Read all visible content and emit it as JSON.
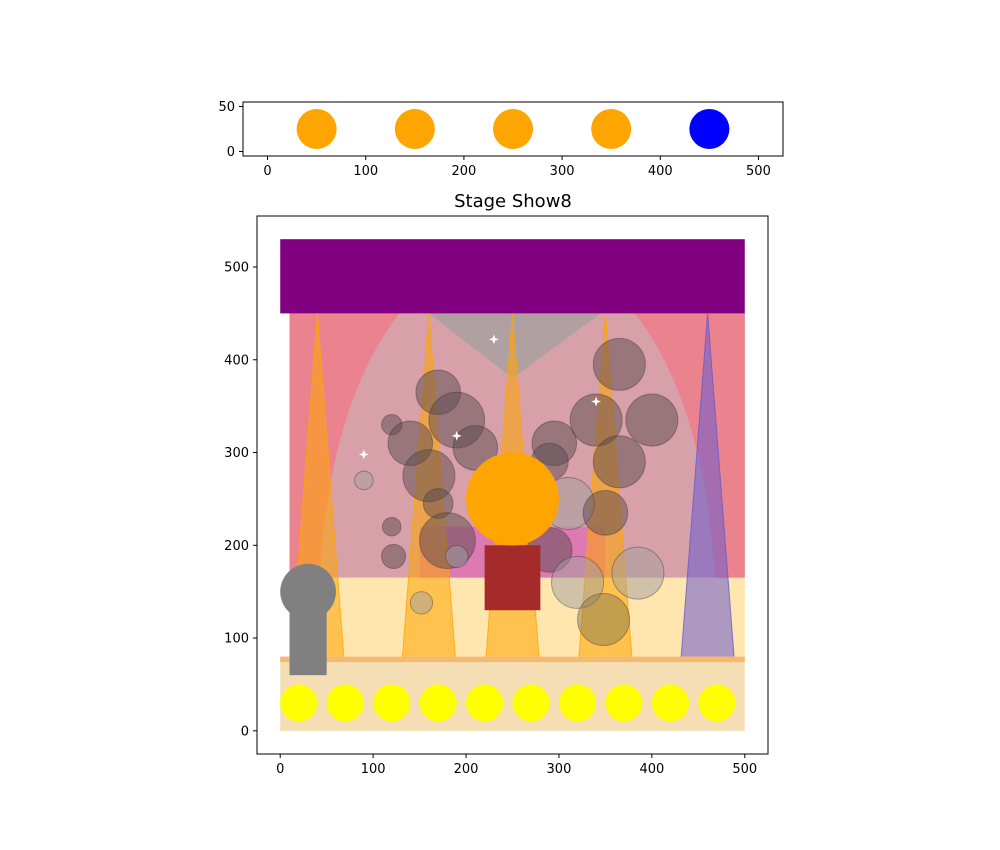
{
  "chart_data": [
    {
      "type": "scatter",
      "title": "",
      "xlim": [
        -25,
        525
      ],
      "ylim": [
        -5,
        55
      ],
      "xticks": [
        0,
        100,
        200,
        300,
        400,
        500
      ],
      "yticks": [
        0,
        50
      ],
      "points": [
        {
          "x": 50,
          "y": 25,
          "color": "#ffa500"
        },
        {
          "x": 150,
          "y": 25,
          "color": "#ffa500"
        },
        {
          "x": 250,
          "y": 25,
          "color": "#ffa500"
        },
        {
          "x": 350,
          "y": 25,
          "color": "#ffa500"
        },
        {
          "x": 450,
          "y": 25,
          "color": "#0000ff"
        }
      ]
    },
    {
      "type": "other",
      "title": "Stage Show8",
      "xlim": [
        -25,
        525
      ],
      "ylim": [
        -25,
        555
      ],
      "xticks": [
        0,
        100,
        200,
        300,
        400,
        500
      ],
      "yticks": [
        0,
        100,
        200,
        300,
        400,
        500
      ],
      "elements": {
        "backdrop": {
          "x": [
            10,
            500
          ],
          "y": [
            165,
            450
          ],
          "color": "#d8a0a8"
        },
        "banner": {
          "x": [
            0,
            500
          ],
          "y": [
            450,
            530
          ],
          "color": "#800080"
        },
        "stage_floor": {
          "x": [
            0,
            500
          ],
          "y": [
            0,
            80
          ],
          "color": "#f5deb3"
        },
        "spotlights": [
          {
            "x": 40,
            "top": 450,
            "bottom": 60,
            "half_width": 30,
            "color": "#ffa500"
          },
          {
            "x": 160,
            "top": 450,
            "bottom": 60,
            "half_width": 30,
            "color": "#ffa500"
          },
          {
            "x": 250,
            "top": 450,
            "bottom": 60,
            "half_width": 30,
            "color": "#ffa500"
          },
          {
            "x": 350,
            "top": 450,
            "bottom": 60,
            "half_width": 30,
            "color": "#ffa500"
          },
          {
            "x": 460,
            "top": 450,
            "bottom": 60,
            "half_width": 30,
            "color": "#6a5acd"
          }
        ],
        "footlights": {
          "x": [
            20,
            70,
            120,
            170,
            220,
            270,
            320,
            370,
            420,
            470
          ],
          "y": 30,
          "radius": 20,
          "color": "#ffff00"
        },
        "performer": {
          "head": {
            "x": 250,
            "y": 250,
            "radius": 50
          },
          "body": {
            "x": [
              220,
              280
            ],
            "y": [
              130,
              200
            ]
          },
          "head_color": "#ffa500",
          "body_color": "#a52a2a"
        },
        "microphone": {
          "head": {
            "x": 30,
            "y": 150,
            "radius": 30
          },
          "stand": {
            "x": [
              10,
              50
            ],
            "y": [
              60,
              150
            ]
          },
          "color": "#808080"
        },
        "bubbles": [
          {
            "x": 170,
            "y": 365,
            "r": 24,
            "color": "#5a4a50"
          },
          {
            "x": 190,
            "y": 335,
            "r": 30,
            "color": "#5a4a50"
          },
          {
            "x": 120,
            "y": 330,
            "r": 11,
            "color": "#5a4a50"
          },
          {
            "x": 140,
            "y": 310,
            "r": 24,
            "color": "#5a4a50"
          },
          {
            "x": 210,
            "y": 305,
            "r": 24,
            "color": "#5a4a50"
          },
          {
            "x": 160,
            "y": 275,
            "r": 28,
            "color": "#5a4a50"
          },
          {
            "x": 170,
            "y": 245,
            "r": 16,
            "color": "#5a4a50"
          },
          {
            "x": 180,
            "y": 205,
            "r": 30,
            "color": "#5a4a50"
          },
          {
            "x": 90,
            "y": 270,
            "r": 10,
            "color": "#a0a0a0"
          },
          {
            "x": 120,
            "y": 220,
            "r": 10,
            "color": "#5a4a50"
          },
          {
            "x": 122,
            "y": 188,
            "r": 13,
            "color": "#5a4a50"
          },
          {
            "x": 190,
            "y": 188,
            "r": 12,
            "color": "#a0a0a0"
          },
          {
            "x": 152,
            "y": 138,
            "r": 12,
            "color": "#a0a0a0"
          },
          {
            "x": 295,
            "y": 310,
            "r": 24,
            "color": "#5a4a50"
          },
          {
            "x": 290,
            "y": 290,
            "r": 20,
            "color": "#5a4a50"
          },
          {
            "x": 290,
            "y": 195,
            "r": 24,
            "color": "#5a4a50"
          },
          {
            "x": 310,
            "y": 245,
            "r": 28,
            "color": "#a0a0a0"
          },
          {
            "x": 340,
            "y": 335,
            "r": 28,
            "color": "#5a4a50"
          },
          {
            "x": 365,
            "y": 395,
            "r": 28,
            "color": "#5a4a50"
          },
          {
            "x": 365,
            "y": 290,
            "r": 28,
            "color": "#5a4a50"
          },
          {
            "x": 350,
            "y": 235,
            "r": 24,
            "color": "#5a4a50"
          },
          {
            "x": 400,
            "y": 335,
            "r": 28,
            "color": "#5a4a50"
          },
          {
            "x": 385,
            "y": 170,
            "r": 28,
            "color": "#a0a0a0"
          },
          {
            "x": 320,
            "y": 160,
            "r": 28,
            "color": "#a0a0a0"
          },
          {
            "x": 348,
            "y": 120,
            "r": 28,
            "color": "#8a7a50"
          }
        ],
        "sparkles": [
          {
            "x": 230,
            "y": 422
          },
          {
            "x": 340,
            "y": 355
          },
          {
            "x": 190,
            "y": 318
          },
          {
            "x": 90,
            "y": 298
          }
        ]
      }
    }
  ]
}
